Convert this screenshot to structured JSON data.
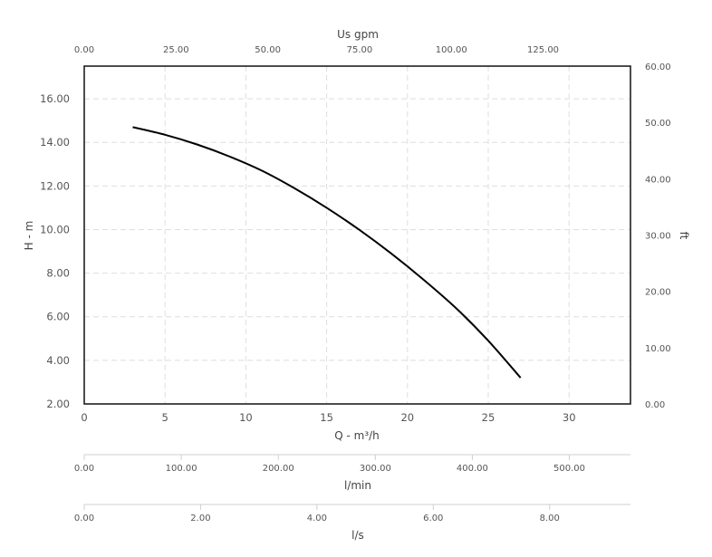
{
  "chart_data": {
    "type": "line",
    "title": "",
    "xlabel": "Q - m³/h",
    "ylabel": "H - m",
    "xlim": [
      0,
      33.8
    ],
    "ylim": [
      2,
      17.5
    ],
    "x_ticks": [
      0,
      5,
      10,
      15,
      20,
      25,
      30
    ],
    "x_tick_labels": [
      "0",
      "5",
      "10",
      "15",
      "20",
      "25",
      "30"
    ],
    "y_ticks": [
      2,
      4,
      6,
      8,
      10,
      12,
      14,
      16
    ],
    "y_tick_labels": [
      "2.00",
      "4.00",
      "6.00",
      "8.00",
      "10.00",
      "12.00",
      "14.00",
      "16.00"
    ],
    "grid": true,
    "series": [
      {
        "name": "",
        "color": "#000000",
        "x": [
          3,
          5,
          7,
          9,
          11,
          13,
          15,
          17,
          19,
          21,
          23,
          25,
          27
        ],
        "y": [
          14.7,
          14.35,
          13.9,
          13.35,
          12.7,
          11.9,
          11.0,
          10.0,
          8.9,
          7.7,
          6.4,
          4.9,
          3.2
        ]
      }
    ],
    "secondary_axes": {
      "top": {
        "label": "Us gpm",
        "ticks": [
          0,
          25,
          50,
          75,
          100,
          125
        ],
        "tick_labels": [
          "0.00",
          "25.00",
          "50.00",
          "75.00",
          "100.00",
          "125.00"
        ],
        "range": [
          0,
          148.8
        ]
      },
      "right": {
        "label": "ft",
        "ticks": [
          0,
          10,
          20,
          30,
          40,
          50,
          60
        ],
        "tick_labels": [
          "0.00",
          "10.00",
          "20.00",
          "30.00",
          "40.00",
          "50.00",
          "60.00"
        ],
        "range": [
          0,
          60
        ]
      },
      "lmin": {
        "label": "l/min",
        "ticks": [
          0,
          100,
          200,
          300,
          400,
          500
        ],
        "tick_labels": [
          "0.00",
          "100.00",
          "200.00",
          "300.00",
          "400.00",
          "500.00"
        ],
        "range": [
          0,
          563
        ]
      },
      "ls": {
        "label": "l/s",
        "ticks": [
          0,
          2,
          4,
          6,
          8
        ],
        "tick_labels": [
          "0.00",
          "2.00",
          "4.00",
          "6.00",
          "8.00"
        ],
        "range": [
          0,
          9.39
        ]
      }
    }
  }
}
